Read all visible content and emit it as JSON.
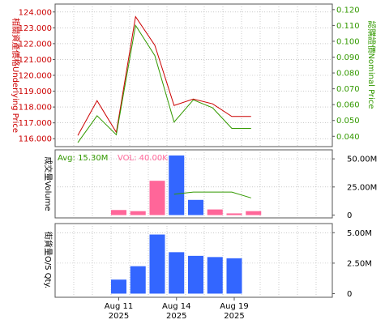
{
  "colors": {
    "underlying_line": "#cc0000",
    "nominal_line": "#339900",
    "vol_bar_pink": "#ff6699",
    "vol_bar_blue": "#3366ff",
    "avg_line": "#339900",
    "os_bar": "#3366ff",
    "grid": "#aaaaaa",
    "axis_text": "#000000"
  },
  "chart_data": [
    {
      "type": "line",
      "name": "price-panel",
      "x": [
        "2025-08-07",
        "2025-08-08",
        "2025-08-11",
        "2025-08-12",
        "2025-08-13",
        "2025-08-14",
        "2025-08-15",
        "2025-08-18",
        "2025-08-19",
        "2025-08-20"
      ],
      "series": [
        {
          "name": "相關資產價格Underlying Price",
          "axis": "left",
          "values": [
            116.2,
            118.4,
            116.4,
            123.7,
            121.9,
            118.1,
            118.5,
            118.2,
            117.4,
            117.4
          ]
        },
        {
          "name": "認購證價Nominal Price",
          "axis": "right",
          "values": [
            0.036,
            0.053,
            0.041,
            0.11,
            0.091,
            0.049,
            0.063,
            0.058,
            0.045,
            0.045
          ]
        }
      ],
      "yleft_label": "相關資產價格Underlying Price",
      "yright_label": "認購證價Nominal Price",
      "yleft_ticks": [
        "116.000",
        "117.000",
        "118.000",
        "119.000",
        "120.000",
        "121.000",
        "122.000",
        "123.000",
        "124.000"
      ],
      "yleft_range": [
        115.5,
        124.5
      ],
      "yright_ticks": [
        "0.040",
        "0.050",
        "0.060",
        "0.070",
        "0.080",
        "0.090",
        "0.100",
        "0.110",
        "0.120"
      ],
      "yright_range": [
        0.0335,
        0.1235
      ],
      "grid": true
    },
    {
      "type": "bar",
      "name": "volume-panel",
      "x": [
        "2025-08-07",
        "2025-08-08",
        "2025-08-11",
        "2025-08-12",
        "2025-08-13",
        "2025-08-14",
        "2025-08-15",
        "2025-08-18",
        "2025-08-19",
        "2025-08-20"
      ],
      "ylabel": "成交量Volume",
      "avg_text": "Avg: 15.30M",
      "vol_text": "VOL: 40.00K",
      "bars": [
        {
          "date": "2025-08-11",
          "value": 4.5,
          "color_key": "vol_bar_pink"
        },
        {
          "date": "2025-08-12",
          "value": 3.5,
          "color_key": "vol_bar_pink"
        },
        {
          "date": "2025-08-13",
          "value": 30.5,
          "color_key": "vol_bar_pink"
        },
        {
          "date": "2025-08-14",
          "value": 53.0,
          "color_key": "vol_bar_blue"
        },
        {
          "date": "2025-08-15",
          "value": 13.5,
          "color_key": "vol_bar_blue"
        },
        {
          "date": "2025-08-18",
          "value": 5.0,
          "color_key": "vol_bar_pink"
        },
        {
          "date": "2025-08-19",
          "value": 1.5,
          "color_key": "vol_bar_pink"
        },
        {
          "date": "2025-08-20",
          "value": 3.5,
          "color_key": "vol_bar_pink"
        }
      ],
      "avg_line": [
        {
          "date": "2025-08-14",
          "value": 18.5
        },
        {
          "date": "2025-08-15",
          "value": 20.5
        },
        {
          "date": "2025-08-18",
          "value": 20.5
        },
        {
          "date": "2025-08-19",
          "value": 20.5
        },
        {
          "date": "2025-08-20",
          "value": 15.3
        }
      ],
      "yticks": [
        "0",
        "25.00M",
        "50.00M"
      ],
      "ytick_values": [
        0,
        25,
        50
      ],
      "yrange": [
        -2.5,
        58
      ],
      "unit": "M",
      "grid": true
    },
    {
      "type": "bar",
      "name": "outstanding-panel",
      "x": [
        "2025-08-07",
        "2025-08-08",
        "2025-08-11",
        "2025-08-12",
        "2025-08-13",
        "2025-08-14",
        "2025-08-15",
        "2025-08-18",
        "2025-08-19",
        "2025-08-20"
      ],
      "ylabel": "街貨量O/S Qty.",
      "bars": [
        {
          "date": "2025-08-11",
          "value": 1.15
        },
        {
          "date": "2025-08-12",
          "value": 2.25
        },
        {
          "date": "2025-08-13",
          "value": 4.85
        },
        {
          "date": "2025-08-14",
          "value": 3.4
        },
        {
          "date": "2025-08-15",
          "value": 3.1
        },
        {
          "date": "2025-08-18",
          "value": 3.0
        },
        {
          "date": "2025-08-19",
          "value": 2.9
        }
      ],
      "yticks": [
        "0",
        "2.50M",
        "5.00M"
      ],
      "ytick_values": [
        0,
        2.5,
        5.0
      ],
      "yrange": [
        -0.3,
        5.75
      ],
      "unit": "M",
      "grid": true
    }
  ],
  "x_axis": {
    "ticks": [
      {
        "date": "2025-08-11",
        "label": "Aug 11",
        "year": "2025"
      },
      {
        "date": "2025-08-14",
        "label": "Aug 14",
        "year": "2025"
      },
      {
        "date": "2025-08-19",
        "label": "Aug 19",
        "year": "2025"
      }
    ]
  }
}
